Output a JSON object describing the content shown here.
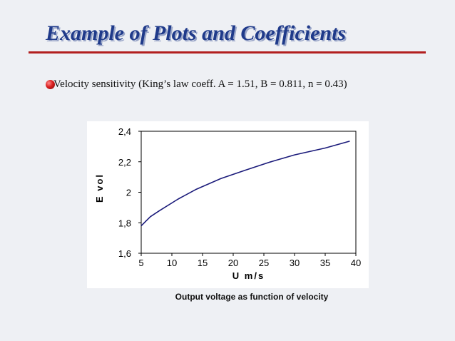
{
  "slide": {
    "title": "Example of Plots and Coefficients",
    "bullet_text": "Velocity sensitivity (King’s law coeff. A = 1.51, B = 0.811, n = 0.43)",
    "caption": "Output voltage as function of velocity"
  },
  "colors": {
    "title": "#1f3a8a",
    "rule": "#b21f1f",
    "line": "#1a1a7a"
  },
  "chart_data": {
    "type": "line",
    "title": "",
    "xlabel": "U m/s",
    "ylabel": "E vol",
    "xlim": [
      5,
      40
    ],
    "ylim": [
      1.6,
      2.4
    ],
    "x_ticks": [
      5,
      10,
      15,
      20,
      25,
      30,
      35,
      40
    ],
    "y_ticks": [
      1.6,
      1.8,
      2.0,
      2.2,
      2.4
    ],
    "x_tick_labels": [
      "5",
      "10",
      "15",
      "20",
      "25",
      "30",
      "35",
      "40"
    ],
    "y_tick_labels": [
      "1,6",
      "1,8",
      "2",
      "2,2",
      "2,4"
    ],
    "series": [
      {
        "name": "E",
        "x": [
          5,
          6.5,
          8,
          11,
          14,
          18,
          22,
          26,
          30,
          35,
          39
        ],
        "y": [
          1.78,
          1.84,
          1.88,
          1.955,
          2.02,
          2.09,
          2.145,
          2.198,
          2.245,
          2.29,
          2.335
        ]
      }
    ]
  }
}
